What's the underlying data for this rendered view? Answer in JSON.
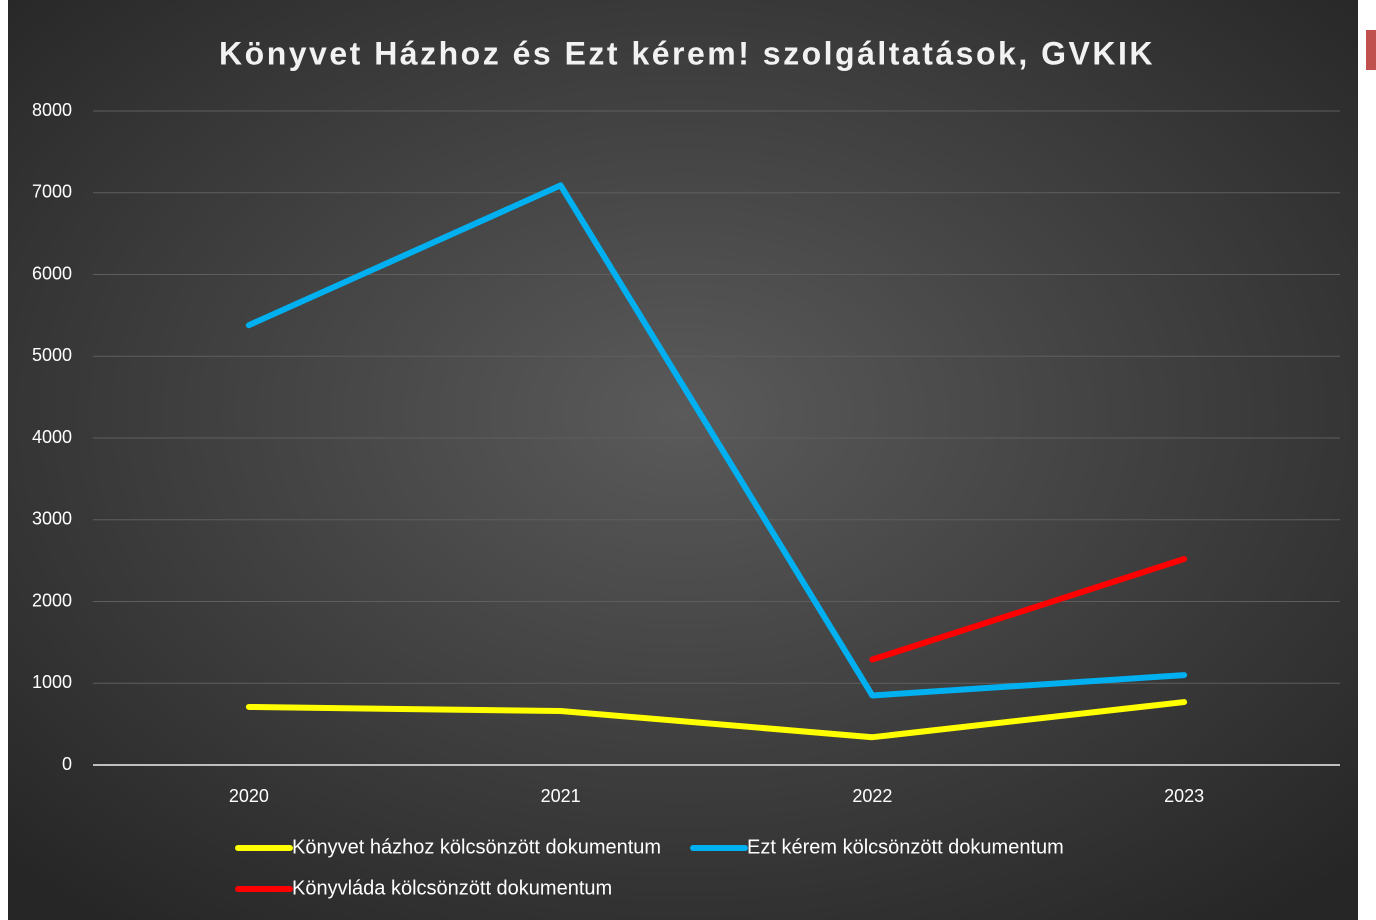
{
  "chart_data": {
    "type": "line",
    "title": "Könyvet Házhoz és Ezt kérem! szolgáltatások, GVKIK",
    "categories": [
      "2020",
      "2021",
      "2022",
      "2023"
    ],
    "series": [
      {
        "name": "Könyvet házhoz kölcsönzött dokumentum",
        "color": "#ffff00",
        "values": [
          710,
          660,
          340,
          770
        ]
      },
      {
        "name": "Ezt kérem kölcsönzött dokumentum",
        "color": "#00b0f0",
        "values": [
          5380,
          7090,
          850,
          1100
        ]
      },
      {
        "name": "Könyvláda kölcsönzött dokumentum",
        "color": "#ff0000",
        "values": [
          null,
          null,
          1290,
          2520
        ]
      }
    ],
    "ylim": [
      0,
      8000
    ],
    "yticks": [
      0,
      1000,
      2000,
      3000,
      4000,
      5000,
      6000,
      7000,
      8000
    ],
    "grid": true,
    "legend": "bottom"
  }
}
